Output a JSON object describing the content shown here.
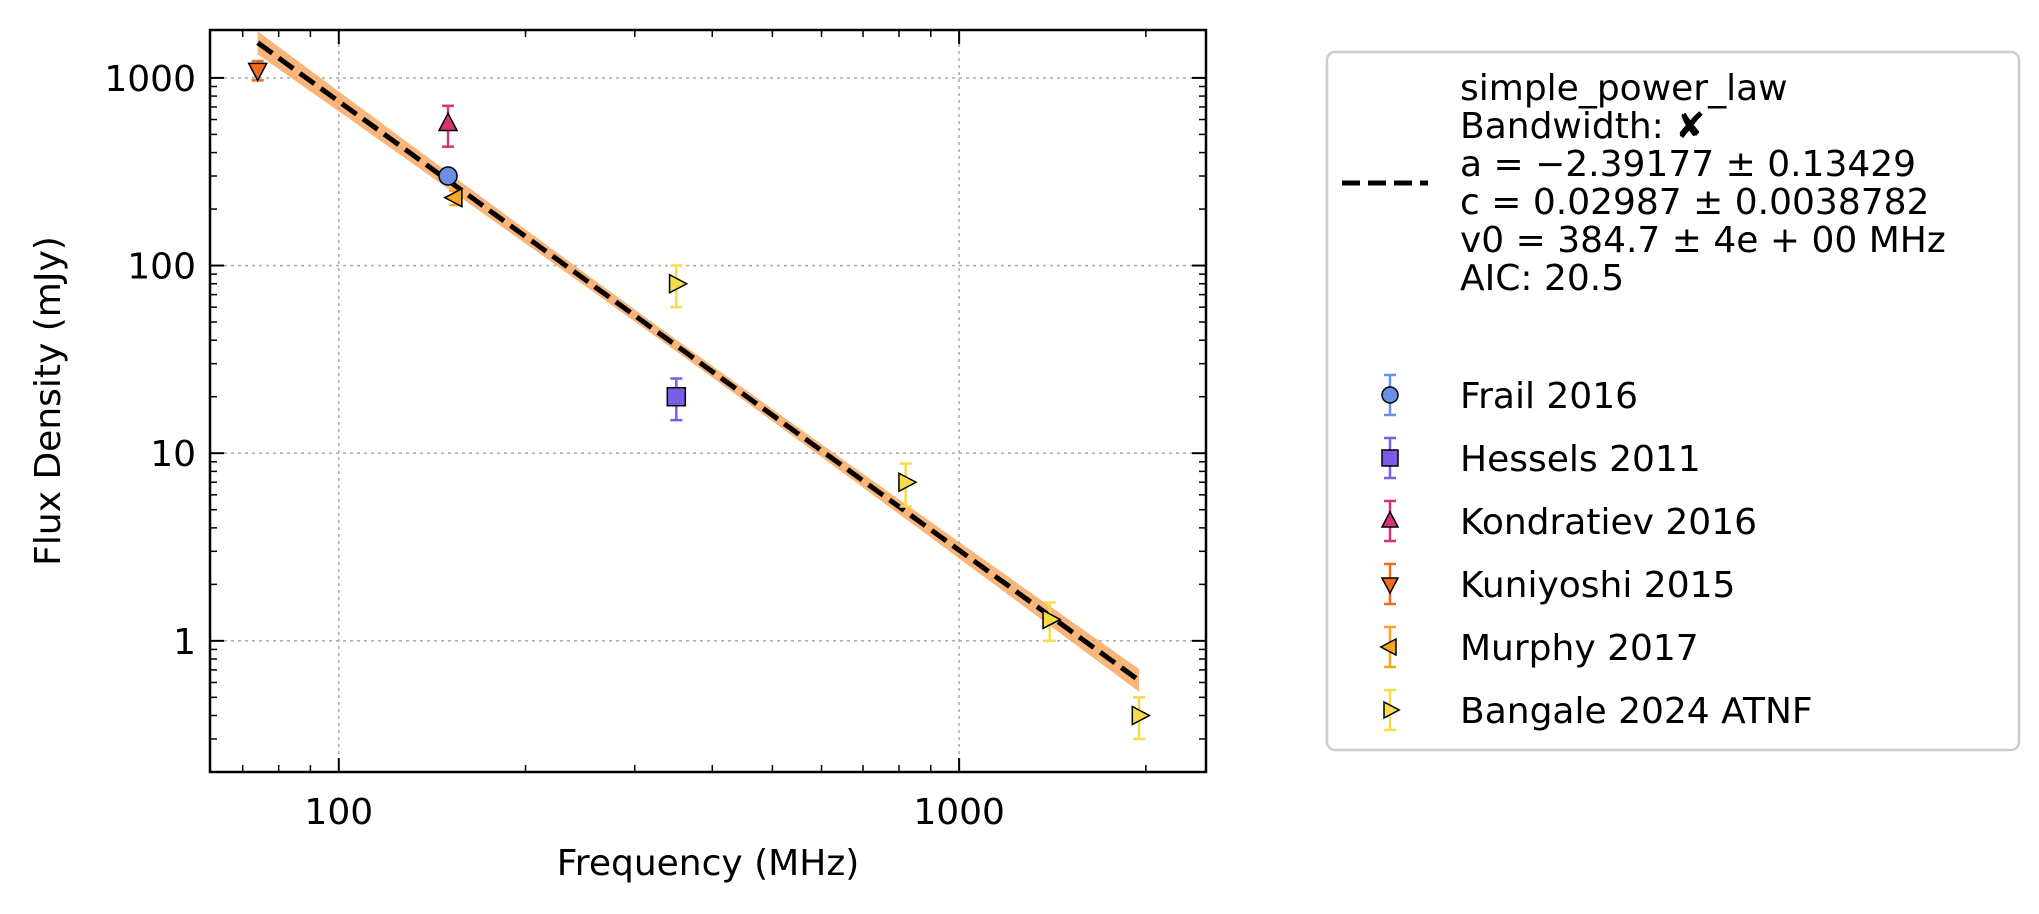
{
  "chart_data": {
    "type": "scatter",
    "xlabel": "Frequency (MHz)",
    "ylabel": "Flux Density (mJy)",
    "x_scale": "log",
    "y_scale": "log",
    "xlim": [
      62,
      2500
    ],
    "ylim": [
      0.2,
      1800
    ],
    "x_ticks": [
      {
        "value": 100,
        "label": "100"
      },
      {
        "value": 1000,
        "label": "1000"
      }
    ],
    "y_ticks": [
      {
        "value": 1,
        "label": "1"
      },
      {
        "value": 10,
        "label": "10"
      },
      {
        "value": 100,
        "label": "100"
      },
      {
        "value": 1000,
        "label": "1000"
      }
    ],
    "grid": true,
    "legend_position": "outside-right",
    "fit": {
      "model": "simple_power_law",
      "label_lines": [
        "simple_power_law",
        "Bandwidth: ✘",
        "a = −2.39177 ± 0.13429",
        "c = 0.02987 ± 0.0038782",
        "v0 = 384.7 ± 4e + 00 MHz",
        "AIC: 20.5"
      ],
      "a": -2.39177,
      "c": 0.02987,
      "v0": 384.7,
      "x_range": [
        74,
        1950
      ],
      "line_color": "#000000",
      "band_color": "#f9a25a"
    },
    "series": [
      {
        "name": "Frail 2016",
        "marker": "circle",
        "color": "#6a8fe8",
        "err_color": "#6a8fe8",
        "points": [
          {
            "x": 150,
            "y": 300,
            "err": 25
          }
        ]
      },
      {
        "name": "Hessels 2011",
        "marker": "square",
        "color": "#7b5ce6",
        "err_color": "#7b5ce6",
        "points": [
          {
            "x": 350,
            "y": 20,
            "err": 5
          }
        ]
      },
      {
        "name": "Kondratiev 2016",
        "marker": "triangle-up",
        "color": "#d6337a",
        "err_color": "#d6337a",
        "points": [
          {
            "x": 150,
            "y": 570,
            "err": 140
          }
        ]
      },
      {
        "name": "Kuniyoshi 2015",
        "marker": "triangle-down",
        "color": "#f26b1d",
        "err_color": "#f26b1d",
        "points": [
          {
            "x": 74,
            "y": 1100,
            "err": 130
          }
        ]
      },
      {
        "name": "Murphy 2017",
        "marker": "triangle-left",
        "color": "#f5a623",
        "err_color": "#f5a623",
        "points": [
          {
            "x": 154,
            "y": 230,
            "err": 20
          }
        ]
      },
      {
        "name": "Bangale 2024 ATNF",
        "marker": "triangle-right",
        "color": "#f7dc4a",
        "err_color": "#f7dc4a",
        "points": [
          {
            "x": 350,
            "y": 80,
            "err": 20
          },
          {
            "x": 820,
            "y": 7,
            "err": 1.8
          },
          {
            "x": 1400,
            "y": 1.3,
            "err": 0.3
          },
          {
            "x": 1950,
            "y": 0.4,
            "err": 0.1
          }
        ]
      }
    ]
  }
}
